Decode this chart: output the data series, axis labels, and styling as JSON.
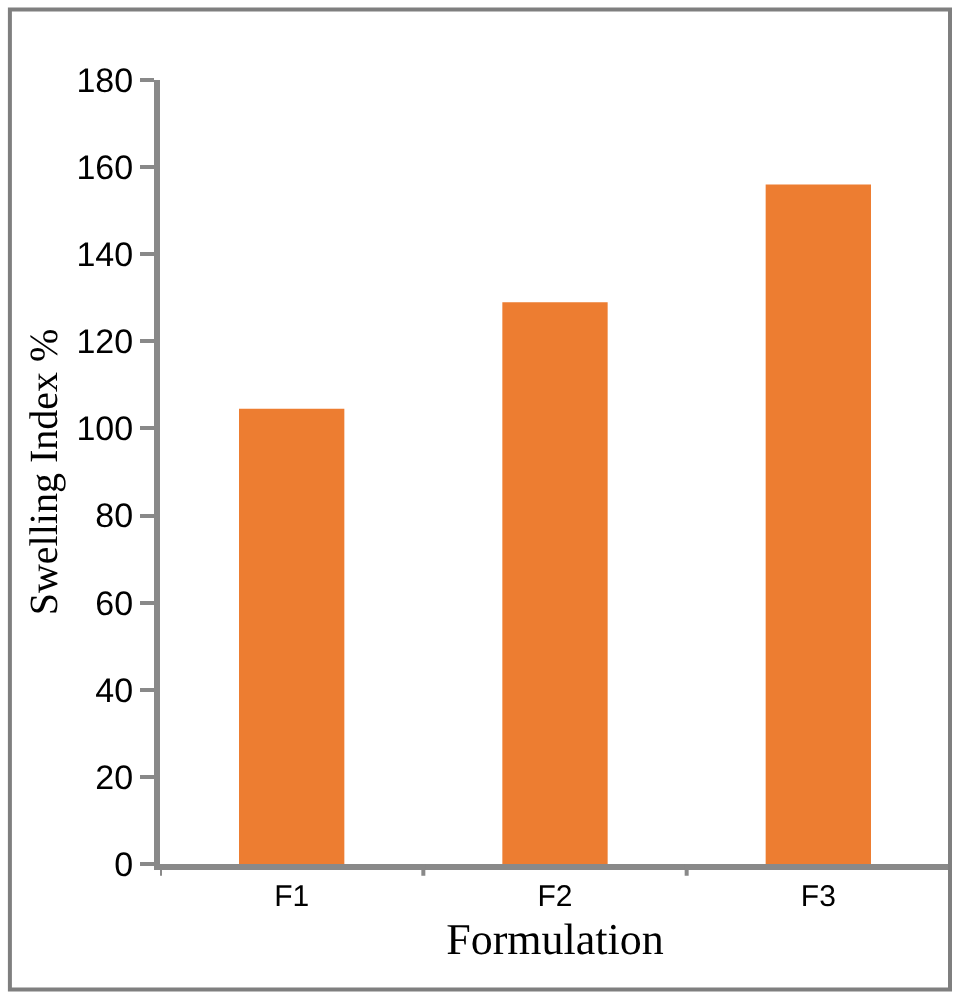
{
  "chart_data": {
    "type": "bar",
    "xlabel": "Formulation",
    "ylabel": "Swelling Index %",
    "categories": [
      "F1",
      "F2",
      "F3"
    ],
    "values": [
      104.5,
      129,
      156
    ],
    "color": "#ed7d31",
    "ylim": [
      0,
      180
    ],
    "yticks": [
      0,
      20,
      40,
      60,
      80,
      100,
      120,
      140,
      160,
      180
    ]
  }
}
